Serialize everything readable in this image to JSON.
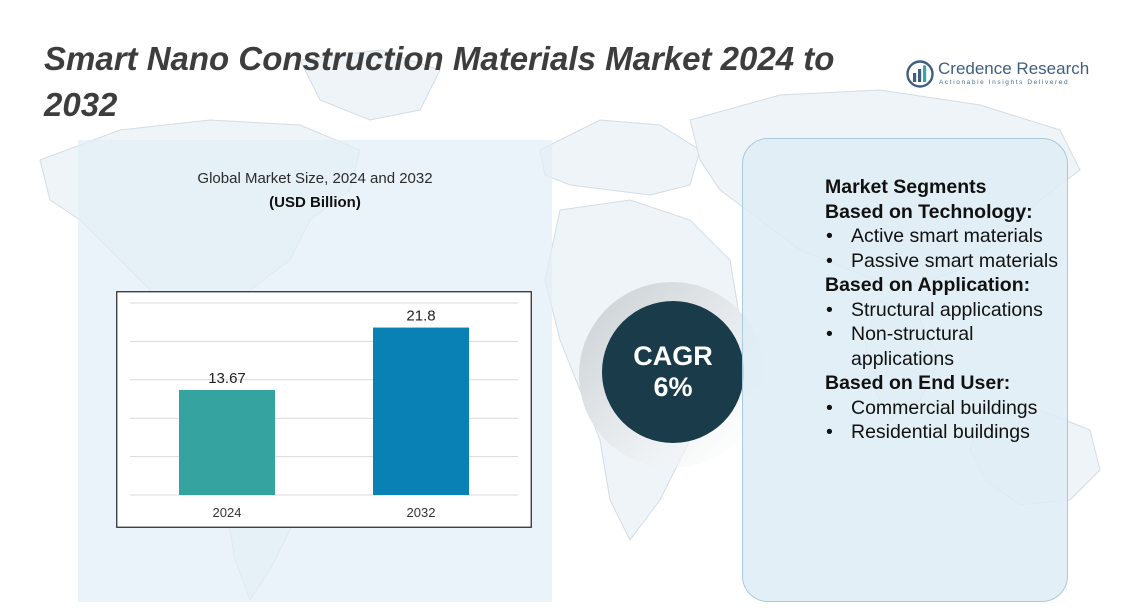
{
  "title": "Smart Nano Construction Materials Market 2024 to 2032",
  "logo": {
    "icon": "credence-research-logo-icon",
    "name": "Credence Research",
    "tagline": "Actionable Insights Delivered"
  },
  "chart_data": {
    "type": "bar",
    "title": "Global Market Size, 2024 and 2032",
    "subtitle": "(USD Billion)",
    "categories": [
      "2024",
      "2032"
    ],
    "values": [
      13.67,
      21.8
    ],
    "value_labels": [
      "13.67",
      "21.8"
    ],
    "colors": [
      "#35a3a0",
      "#0981b4"
    ],
    "xlabel": "",
    "ylabel": "",
    "ylim": [
      0,
      25
    ],
    "grid": true,
    "legend": "none"
  },
  "cagr": {
    "label": "CAGR",
    "value": "6%"
  },
  "segments": {
    "title": "Market Segments",
    "groups": [
      {
        "heading": "Based on Technology:",
        "items": [
          "Active smart materials",
          "Passive smart materials"
        ]
      },
      {
        "heading": "Based on Application:",
        "items": [
          "Structural applications",
          "Non-structural applications"
        ]
      },
      {
        "heading": "Based on End User:",
        "items": [
          "Commercial buildings",
          "Residential buildings"
        ]
      }
    ]
  },
  "colors": {
    "title": "#3d3d3d",
    "cagr_circle": "#1a3b49",
    "bar_2024": "#35a3a0",
    "bar_2032": "#0981b4",
    "panel_bg": "#e2eef6",
    "panel_border": "#a9c9e0"
  }
}
